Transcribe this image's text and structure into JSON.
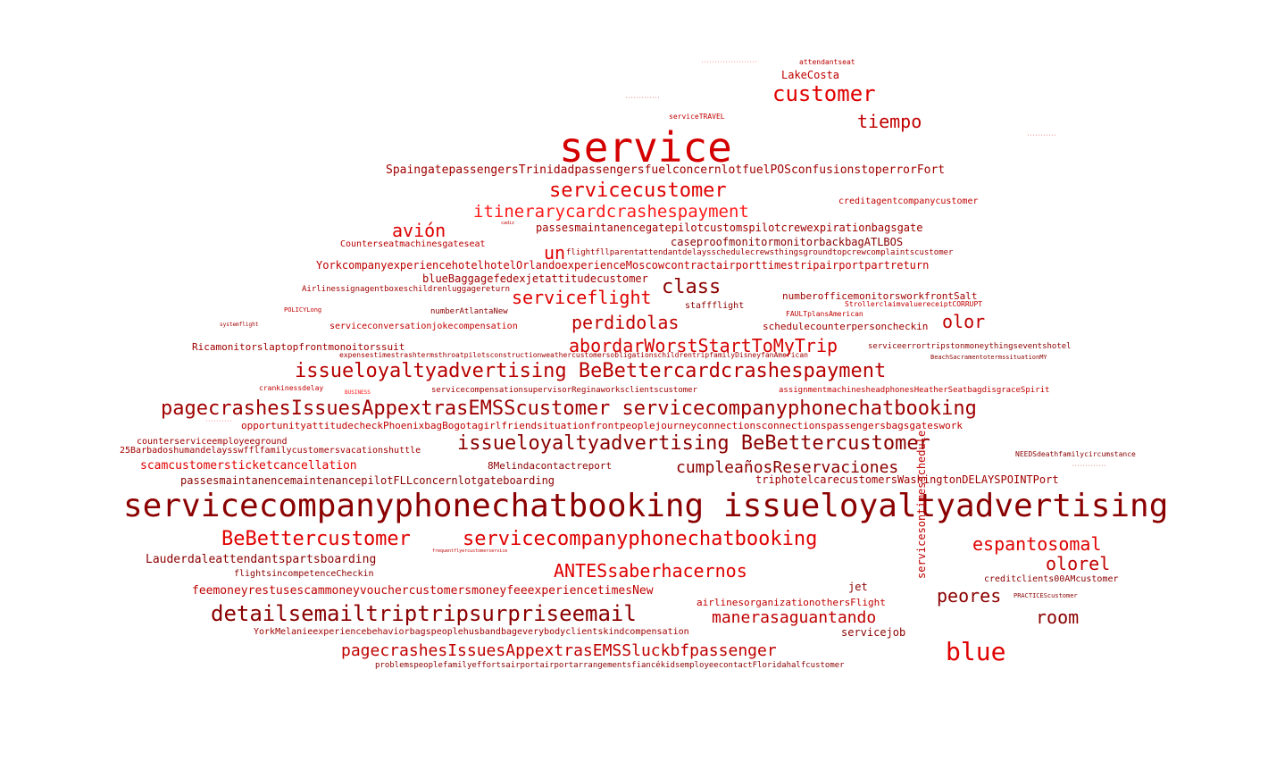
{
  "words": {
    "service": "service",
    "customer": "customer",
    "tiempo": "tiempo",
    "lakecosta": "LakeCosta",
    "spaingate": "SpaingatepassengersTrinidadpassengersfuelconcernlotfuelPOSconfusionstoperrorFort",
    "servicecustomer": "servicecustomer",
    "itinerarycard": "itinerarycardcrashespayment",
    "avion": "avión",
    "passesmaintenance1": "passesmaintanencegatepilotcustomspilotcrewexpirationbagsgate",
    "un": "un",
    "caseproof": "caseproofmonitormonitorbackbagATLBOS",
    "counterseat": "Counterseatmachinesgateseat",
    "flightfll": "flightfllparentattendantdelaysschedulecrewsthingsgroundtopcrewcomplaintscustomer",
    "yorkcompany": "YorkcompanyexperiencehotelhotelOrlandoexperienceMoscowcontractairporttimestripairportpartreturn",
    "bluebaggage": "blueBaggagefedexjetattitudecustomer",
    "class": "class",
    "airlinessign": "Airlinessignagentboxeschildrenluggagereturn",
    "serviceflight": "serviceflight",
    "numberoffice": "numberofficemonitorsworkfrontSalt",
    "staffflight": "staffflight",
    "policylong": "POLICYLong",
    "numberatlanta": "numberAtlantaNew",
    "strollerclaim": "StrollerclaimvaluereceiptCORRUPT",
    "perdidolas": "perdidolas",
    "olor": "olor",
    "faultplans": "FAULTplansAmerican",
    "serviceconversation": "serviceconversationjokecompensation",
    "schedulecounter": "schedulecounterpersoncheckin",
    "abordar": "abordarWorstStartToMyTrip",
    "ricamonitors": "Ricamonitorslaptopfrontmonoitorssuit",
    "serviceerror": "serviceerrortripstonmoneythingseventshotel",
    "expenses": "expensestimestrashtermsthroatpilotsconstructionweathercustomersobligationschildrentripfamilyDisneyfanAmerican",
    "beachsacramento": "BeachSacramentotermssituationMY",
    "issueloyalty1": "issueloyaltyadvertising BeBettercardcrashespayment",
    "crankinessdelay": "crankinessdelay",
    "servicecompensation": "servicecompensationsupervisorReginaworksclientscustomer",
    "assignment": "assignmentmachinesheadphonesHeatherSeatbagdisgraceSpirit",
    "business": "BUSINESS",
    "pagecrashes1": "pagecrashesIssuesAppextrasEMSScustomer servicecompanyphonechatbooking",
    "opportunity": "opportunityattitudecheckPhoenixbagBogotagirlfriendsituationfrontpeoplejourneyconnectionsconnectionspassengersbagsgateswork",
    "counterservice": "counterserviceemployeeground",
    "issueloyalty2": "issueloyaltyadvertising BeBettercustomer",
    "barbados": "25Barbadoshumandelaysswfflfamilycustomersvacationshuttle",
    "scamcustomers": "scamcustomersticketcancellation",
    "melinda": "8Melindacontactreport",
    "cumpleanos": "cumpleañosReservaciones",
    "needsdeath": "NEEDSdeathfamilycircumstance",
    "passesmaintenance2": "passesmaintanencemaintenancepilotFLLconcernlotgateboarding",
    "triphotel": "triphotelcarecustomersWashingtonDELAYSPOINTPort",
    "servicecompany_big": "servicecompanyphonechatbooking issueloyaltyadvertising",
    "bebettercustomer": "BeBettercustomer",
    "servicecompany2": "servicecompanyphonechatbooking",
    "espantosomal": "espantosomal",
    "lauderdale": "Lauderdaleattendantspartsboarding",
    "olorel": "olorel",
    "antes": "ANTESsaberhacernos",
    "flightsincompetence": "flightsincompetenceCheckin",
    "creditclients": "creditclients00AMcustomer",
    "jet": "jet",
    "feemoney": "feemoneyrestusescammoneyvouchercustomersmoneyfeeexperiencetimesNew",
    "peores": "peores",
    "airlinesorg": "airlinesorganizationothersFlight",
    "detailsemail": "detailsemailtriptripsurpriseemail",
    "manerasaguantando": "manerasaguantando",
    "room": "room",
    "yorkmelanie": "YorkMelanieexperiencebehaviorbagspeoplehusbandbageverybodyclientskindcompensation",
    "servicejob": "servicejob",
    "pagecrashes2": "pagecrashesIssuesAppextrasEMSSluckbfpassenger",
    "blue": "blue",
    "problems": "problemspeoplefamilyeffortsairportairportarrangementsfiancékidsemployeecontactFloridahalfcustomer",
    "servicesontimes": "servicesontimesschedule",
    "attendantseat": "attendantseat",
    "servicetravel": "serviceTRAVEL",
    "creditagent": "creditagentcompanycustomer",
    "practicescustomer": "PRACTICEScustomer",
    "systemflight": "systemflight",
    "cadiz": "cadiz",
    "frequentflyer": "frequentflyercustomerservice"
  },
  "colors": {
    "primary": "#c00000",
    "bright": "#e00000",
    "dark": "#8b0000",
    "light": "#ff1a1a",
    "background": "#ffffff"
  }
}
